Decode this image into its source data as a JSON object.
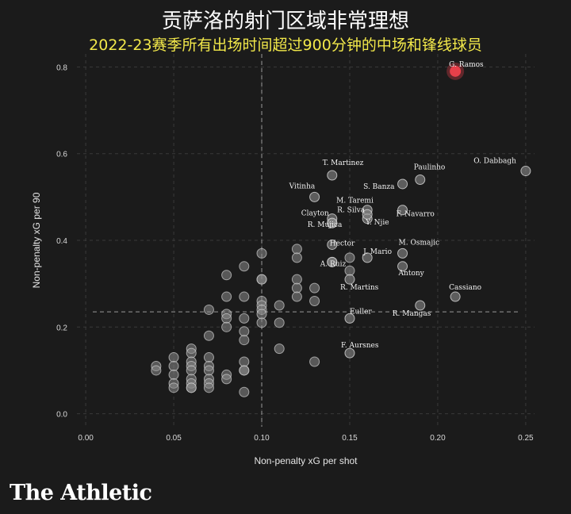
{
  "header": {
    "title": "贡萨洛的射门区域非常理想",
    "subtitle": "2022-23赛季所有出场时间超过900分钟的中场和锋线球员"
  },
  "brand": {
    "logo_text": "The Athletic"
  },
  "colors": {
    "background": "#1b1b1b",
    "point": "#8a8a8a",
    "highlight": "#e8404a",
    "subtitle": "#f2e84a"
  },
  "chart_data": {
    "type": "scatter",
    "xlabel": "Non-penalty xG per shot",
    "ylabel": "Non-penalty xG per 90",
    "xlim": [
      -0.005,
      0.255
    ],
    "ylim": [
      -0.03,
      0.83
    ],
    "xticks": [
      "0.00",
      "0.05",
      "0.10",
      "0.15",
      "0.20",
      "0.25"
    ],
    "yticks": [
      "0.0",
      "0.2",
      "0.4",
      "0.6",
      "0.8"
    ],
    "grid": true,
    "reference_lines": {
      "x": 0.1,
      "y": 0.235
    },
    "highlight": {
      "name": "G. Ramos",
      "x": 0.21,
      "y": 0.79
    },
    "labeled_points": [
      {
        "name": "O. Dabbagh",
        "x": 0.25,
        "y": 0.56
      },
      {
        "name": "Paulinho",
        "x": 0.19,
        "y": 0.54
      },
      {
        "name": "S. Banza",
        "x": 0.18,
        "y": 0.53
      },
      {
        "name": "T. Martinez",
        "x": 0.14,
        "y": 0.55
      },
      {
        "name": "Vitinha",
        "x": 0.13,
        "y": 0.5
      },
      {
        "name": "M. Taremi",
        "x": 0.16,
        "y": 0.47
      },
      {
        "name": "F. Navarro",
        "x": 0.18,
        "y": 0.47
      },
      {
        "name": "Clayton",
        "x": 0.14,
        "y": 0.45
      },
      {
        "name": "R. Silva",
        "x": 0.16,
        "y": 0.45
      },
      {
        "name": "Y. Njie",
        "x": 0.16,
        "y": 0.46
      },
      {
        "name": "R. Mujica",
        "x": 0.14,
        "y": 0.44
      },
      {
        "name": "Hector",
        "x": 0.14,
        "y": 0.39
      },
      {
        "name": "J. Mario",
        "x": 0.16,
        "y": 0.36
      },
      {
        "name": "M. Osmajic",
        "x": 0.18,
        "y": 0.37
      },
      {
        "name": "A. Ruiz",
        "x": 0.14,
        "y": 0.35
      },
      {
        "name": "Antony",
        "x": 0.18,
        "y": 0.34
      },
      {
        "name": "R. Martins",
        "x": 0.15,
        "y": 0.31
      },
      {
        "name": "Cassiano",
        "x": 0.21,
        "y": 0.27
      },
      {
        "name": "Euller",
        "x": 0.15,
        "y": 0.22
      },
      {
        "name": "R. Mangas",
        "x": 0.19,
        "y": 0.25
      },
      {
        "name": "F. Aursnes",
        "x": 0.15,
        "y": 0.14
      }
    ],
    "other_points": [
      [
        0.04,
        0.11
      ],
      [
        0.04,
        0.1
      ],
      [
        0.05,
        0.13
      ],
      [
        0.05,
        0.11
      ],
      [
        0.05,
        0.09
      ],
      [
        0.05,
        0.07
      ],
      [
        0.05,
        0.06
      ],
      [
        0.06,
        0.15
      ],
      [
        0.06,
        0.14
      ],
      [
        0.06,
        0.12
      ],
      [
        0.06,
        0.11
      ],
      [
        0.06,
        0.1
      ],
      [
        0.06,
        0.08
      ],
      [
        0.06,
        0.07
      ],
      [
        0.06,
        0.06
      ],
      [
        0.06,
        0.06
      ],
      [
        0.07,
        0.13
      ],
      [
        0.07,
        0.11
      ],
      [
        0.07,
        0.1
      ],
      [
        0.07,
        0.08
      ],
      [
        0.07,
        0.07
      ],
      [
        0.07,
        0.06
      ],
      [
        0.07,
        0.18
      ],
      [
        0.07,
        0.24
      ],
      [
        0.08,
        0.32
      ],
      [
        0.08,
        0.27
      ],
      [
        0.08,
        0.23
      ],
      [
        0.08,
        0.22
      ],
      [
        0.08,
        0.2
      ],
      [
        0.08,
        0.09
      ],
      [
        0.08,
        0.08
      ],
      [
        0.09,
        0.34
      ],
      [
        0.09,
        0.27
      ],
      [
        0.09,
        0.22
      ],
      [
        0.09,
        0.19
      ],
      [
        0.09,
        0.17
      ],
      [
        0.09,
        0.12
      ],
      [
        0.09,
        0.1
      ],
      [
        0.09,
        0.1
      ],
      [
        0.09,
        0.05
      ],
      [
        0.1,
        0.37
      ],
      [
        0.1,
        0.31
      ],
      [
        0.1,
        0.31
      ],
      [
        0.1,
        0.26
      ],
      [
        0.1,
        0.25
      ],
      [
        0.1,
        0.24
      ],
      [
        0.1,
        0.23
      ],
      [
        0.1,
        0.21
      ],
      [
        0.11,
        0.25
      ],
      [
        0.11,
        0.21
      ],
      [
        0.11,
        0.15
      ],
      [
        0.12,
        0.38
      ],
      [
        0.12,
        0.36
      ],
      [
        0.12,
        0.31
      ],
      [
        0.12,
        0.29
      ],
      [
        0.12,
        0.27
      ],
      [
        0.13,
        0.29
      ],
      [
        0.13,
        0.26
      ],
      [
        0.13,
        0.12
      ],
      [
        0.14,
        0.44
      ],
      [
        0.15,
        0.36
      ],
      [
        0.15,
        0.33
      ],
      [
        0.14,
        0.35
      ]
    ]
  }
}
